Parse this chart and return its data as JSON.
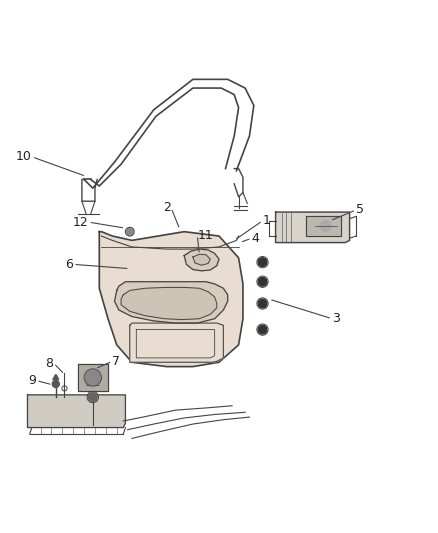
{
  "bg_color": "#ffffff",
  "label_color": "#222222",
  "line_color": "#444444",
  "figsize": [
    4.38,
    5.33
  ],
  "dpi": 100,
  "panel_fill": "#e8ddd0",
  "panel_fill2": "#d8ccbc",
  "bowl_fill": "#ccc4b4",
  "side_fill": "#d8d4cc",
  "armrest_fill": "#d0ccc4"
}
